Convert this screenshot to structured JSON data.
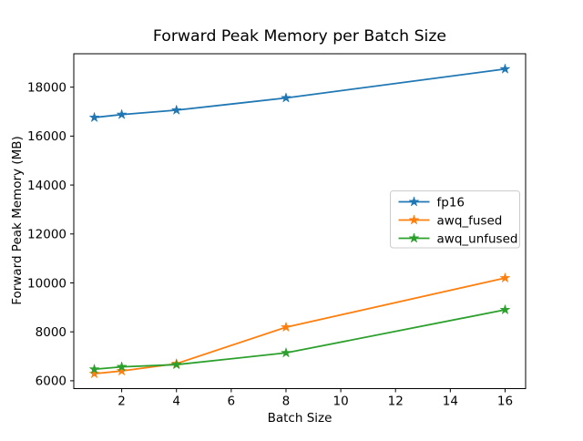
{
  "title": "Forward Peak Memory per Batch Size",
  "chart_data": {
    "type": "line",
    "title": "Forward Peak Memory per Batch Size",
    "xlabel": "Batch Size",
    "ylabel": "Forward Peak Memory (MB)",
    "x": [
      1,
      2,
      4,
      8,
      16
    ],
    "series": [
      {
        "name": "fp16",
        "color": "#1f77b4",
        "marker": "star",
        "values": [
          16760,
          16880,
          17060,
          17560,
          18740
        ]
      },
      {
        "name": "awq_fused",
        "color": "#ff7f0e",
        "marker": "star",
        "values": [
          6290,
          6400,
          6700,
          8190,
          10200
        ]
      },
      {
        "name": "awq_unfused",
        "color": "#2ca02c",
        "marker": "star",
        "values": [
          6470,
          6570,
          6660,
          7140,
          8900
        ]
      }
    ],
    "xticks": [
      2,
      4,
      6,
      8,
      10,
      12,
      14,
      16
    ],
    "yticks": [
      6000,
      8000,
      10000,
      12000,
      14000,
      16000,
      18000
    ],
    "xlim": [
      0.25,
      16.75
    ],
    "ylim": [
      5680,
      19365
    ],
    "grid": false,
    "legend_position": "center-right",
    "legend_frame_color": "#cccccc",
    "axis_color": "#000000",
    "background_color": "#ffffff"
  }
}
